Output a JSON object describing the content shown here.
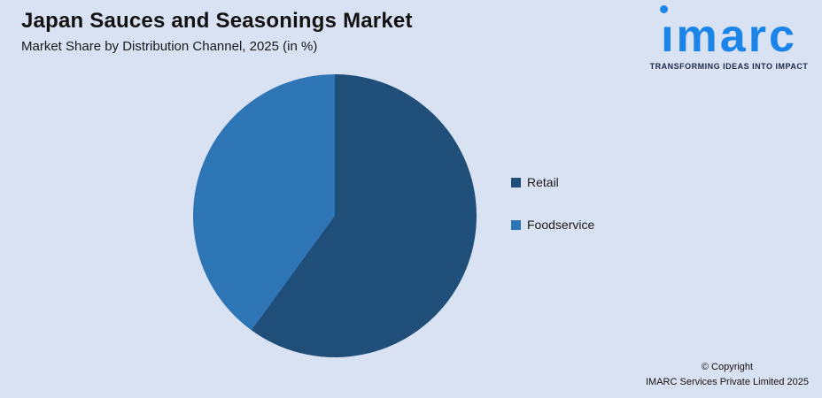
{
  "page": {
    "background": "#D9E2F3"
  },
  "header": {
    "title": "Japan Sauces and Seasonings Market",
    "subtitle": "Market Share by Distribution Channel, 2025 (in %)"
  },
  "logo": {
    "wordmark": "imarc",
    "tagline": "TRANSFORMING IDEAS INTO IMPACT",
    "brand_color": "#1A84E8",
    "tagline_color": "#1C2B4A"
  },
  "chart_data": {
    "type": "pie",
    "title": "Market Share by Distribution Channel, 2025 (in %)",
    "categories": [
      "Retail",
      "Foodservice"
    ],
    "values": [
      60,
      40
    ],
    "colors": [
      "#1F4E79",
      "#2E75B6"
    ],
    "start_angle_deg": 0,
    "direction": "clockwise",
    "legend_position": "right",
    "data_labels": false
  },
  "footer": {
    "copyright_line1": "© Copyright",
    "copyright_line2": "IMARC Services Private Limited 2025"
  }
}
